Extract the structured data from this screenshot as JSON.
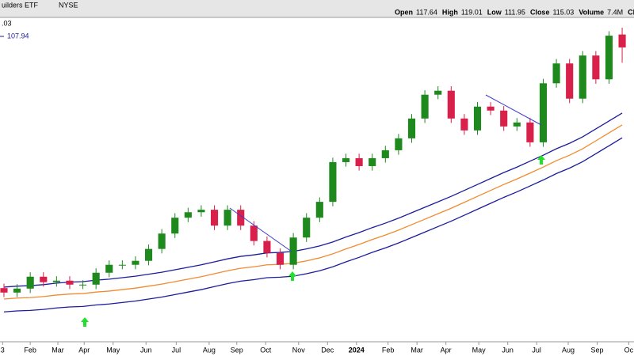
{
  "chart_data": {
    "type": "candlestick",
    "header": {
      "name": "uilders ETF",
      "exchange": "NYSE",
      "fields": [
        "Open",
        "High",
        "Low",
        "Close",
        "Volume",
        "Ch"
      ],
      "volume": "7.4M"
    },
    "legend_texts": [
      ".03",
      "107.94"
    ],
    "up_color": "#1e8a1e",
    "down_color": "#d8204a",
    "open": [
      66.5,
      65.6,
      66.4,
      68.8,
      67.7,
      68.0,
      67.2,
      67.2,
      69.6,
      71.2,
      71.2,
      72.0,
      74.4,
      77.5,
      80.7,
      81.8,
      82.3,
      79.1,
      82.3,
      79.1,
      76.0,
      73.6,
      71.2,
      76.7,
      80.7,
      83.9,
      91.9,
      92.7,
      91.1,
      92.7,
      94.3,
      96.7,
      100.7,
      105.5,
      106.3,
      100.7,
      98.3,
      103.1,
      102.3,
      99.1,
      99.9,
      95.9,
      107.8,
      111.8,
      104.7,
      113.4,
      108.6,
      117.64
    ],
    "high": [
      67.4,
      67.3,
      69.7,
      69.7,
      68.9,
      68.9,
      68.1,
      70.5,
      72.1,
      72.1,
      72.9,
      75.3,
      78.4,
      81.6,
      82.7,
      83.2,
      83.2,
      83.2,
      83.2,
      80.0,
      76.9,
      74.5,
      77.6,
      81.6,
      84.8,
      92.8,
      93.6,
      93.6,
      93.6,
      95.2,
      97.6,
      101.6,
      106.4,
      107.2,
      107.2,
      101.6,
      104.0,
      104.0,
      103.2,
      100.8,
      100.8,
      108.7,
      112.7,
      112.7,
      114.3,
      114.3,
      118.3,
      119.01
    ],
    "low": [
      64.7,
      64.7,
      65.5,
      66.8,
      66.8,
      66.3,
      66.3,
      66.3,
      68.7,
      70.3,
      70.3,
      71.1,
      73.5,
      76.6,
      79.8,
      80.9,
      78.2,
      78.2,
      78.2,
      75.1,
      72.7,
      70.3,
      70.3,
      75.8,
      79.8,
      83.0,
      91.0,
      90.2,
      90.2,
      91.8,
      93.4,
      95.8,
      99.8,
      104.6,
      99.8,
      97.4,
      97.4,
      101.4,
      98.2,
      98.2,
      95.0,
      95.0,
      106.9,
      103.8,
      103.8,
      107.7,
      107.7,
      111.95
    ],
    "close": [
      65.6,
      66.4,
      68.8,
      67.7,
      68.0,
      67.2,
      67.2,
      69.6,
      71.2,
      71.2,
      72.0,
      74.4,
      77.5,
      80.7,
      81.8,
      82.3,
      79.1,
      82.3,
      79.1,
      76.0,
      73.6,
      71.2,
      76.7,
      80.7,
      83.9,
      91.9,
      92.7,
      91.1,
      92.7,
      94.3,
      96.7,
      100.7,
      105.5,
      106.3,
      100.7,
      98.3,
      103.1,
      102.3,
      99.1,
      99.9,
      95.9,
      107.8,
      111.8,
      104.7,
      113.4,
      108.6,
      117.4,
      115.03
    ],
    "series": [
      {
        "color": "#f28a30",
        "values": [
          64.3,
          64.5,
          64.6,
          64.8,
          65.1,
          65.3,
          65.4,
          65.7,
          65.9,
          66.2,
          66.5,
          66.9,
          67.3,
          67.8,
          68.3,
          68.8,
          69.4,
          70.0,
          70.5,
          70.8,
          71.2,
          71.3,
          71.5,
          72.0,
          72.6,
          73.4,
          74.4,
          75.3,
          76.3,
          77.2,
          78.2,
          79.3,
          80.4,
          81.5,
          82.6,
          83.8,
          85.0,
          86.2,
          87.4,
          88.5,
          89.7,
          90.9,
          92.2,
          93.3,
          94.6,
          96.2,
          97.8,
          99.4
        ]
      },
      {
        "color": "#1c1c9c",
        "values": [
          66.7,
          66.9,
          67.0,
          67.2,
          67.5,
          67.7,
          67.8,
          68.1,
          68.3,
          68.6,
          68.9,
          69.3,
          69.7,
          70.2,
          70.7,
          71.2,
          71.8,
          72.4,
          72.9,
          73.2,
          73.6,
          73.7,
          73.9,
          74.4,
          75.0,
          75.8,
          76.8,
          77.7,
          78.7,
          79.6,
          80.6,
          81.7,
          82.8,
          83.9,
          85.0,
          86.2,
          87.4,
          88.6,
          89.8,
          90.9,
          92.1,
          93.3,
          94.6,
          95.7,
          97.0,
          98.6,
          100.2,
          101.8
        ]
      },
      {
        "color": "#1c1c9c",
        "values": [
          61.7,
          61.9,
          62.0,
          62.2,
          62.5,
          62.7,
          62.8,
          63.1,
          63.3,
          63.6,
          63.9,
          64.3,
          64.7,
          65.2,
          65.7,
          66.2,
          66.8,
          67.4,
          67.9,
          68.2,
          68.6,
          68.7,
          68.9,
          69.4,
          70.0,
          70.8,
          71.8,
          72.7,
          73.7,
          74.6,
          75.6,
          76.7,
          77.8,
          78.9,
          80.0,
          81.2,
          82.4,
          83.6,
          84.8,
          85.9,
          87.1,
          88.3,
          89.6,
          90.7,
          92.0,
          93.6,
          95.2,
          96.8
        ]
      }
    ],
    "ylim": [
      56,
      123
    ],
    "xlim": [
      -0.3,
      47.9
    ],
    "xticks": [
      {
        "value": -0.1,
        "label": "3"
      },
      {
        "value": 2.0,
        "label": "Feb"
      },
      {
        "value": 4.1,
        "label": "Mar"
      },
      {
        "value": 6.1,
        "label": "Apr"
      },
      {
        "value": 8.3,
        "label": "May"
      },
      {
        "value": 10.8,
        "label": "Jun"
      },
      {
        "value": 13.1,
        "label": "Jul"
      },
      {
        "value": 15.6,
        "label": "Aug"
      },
      {
        "value": 17.7,
        "label": "Sep"
      },
      {
        "value": 19.9,
        "label": "Oct"
      },
      {
        "value": 22.4,
        "label": "Nov"
      },
      {
        "value": 24.6,
        "label": "Dec"
      },
      {
        "value": 26.8,
        "label": "2024"
      },
      {
        "value": 29.2,
        "label": "Feb"
      },
      {
        "value": 31.4,
        "label": "Mar"
      },
      {
        "value": 33.6,
        "label": "Apr"
      },
      {
        "value": 36.1,
        "label": "May"
      },
      {
        "value": 38.3,
        "label": "Jun"
      },
      {
        "value": 40.5,
        "label": "Jul"
      },
      {
        "value": 42.9,
        "label": "Aug"
      },
      {
        "value": 45.1,
        "label": "Sep"
      },
      {
        "value": 47.5,
        "label": "Oc"
      }
    ]
  }
}
